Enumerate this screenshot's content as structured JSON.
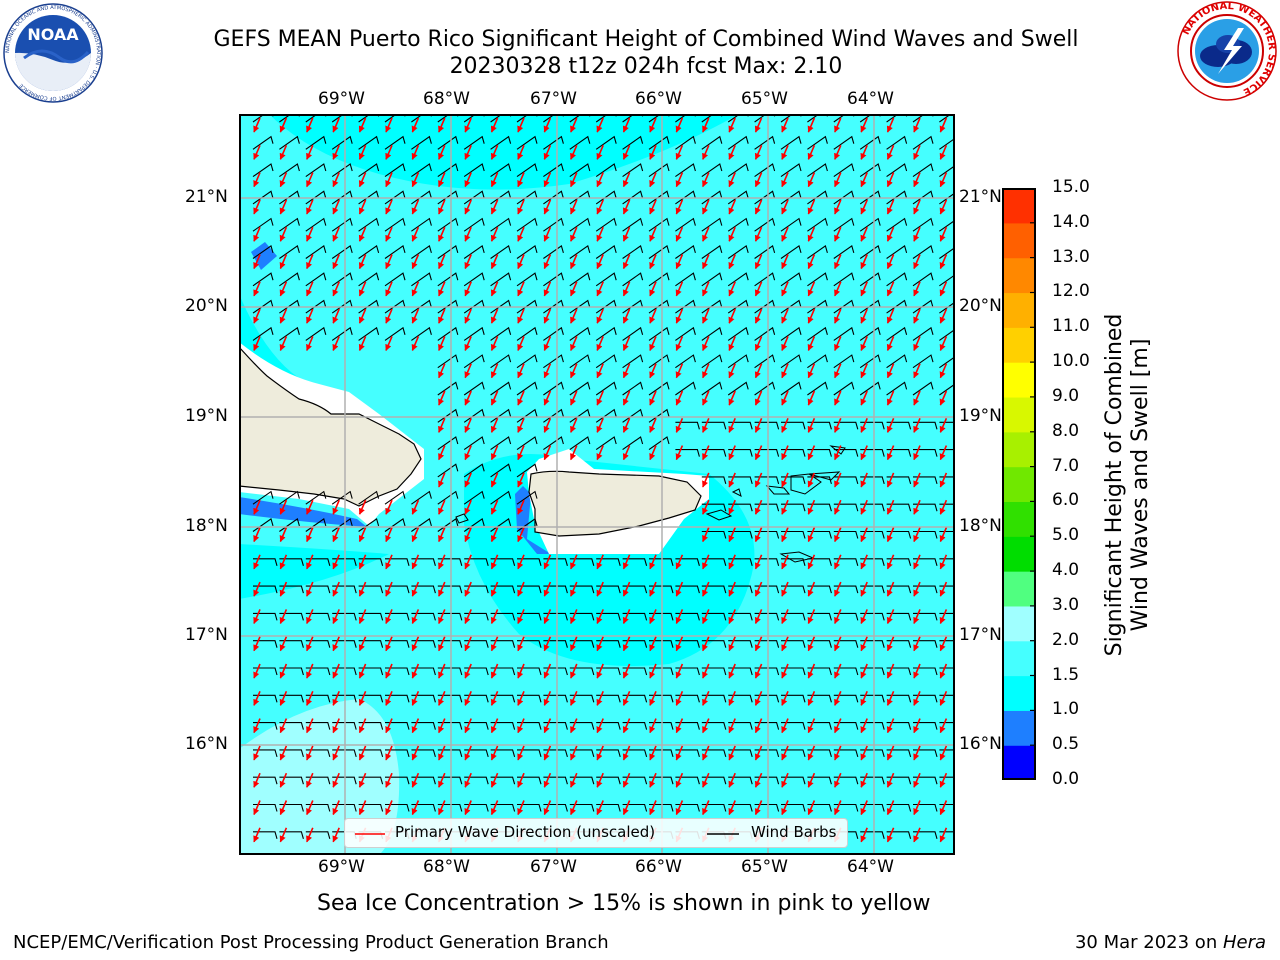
{
  "title": {
    "line1": "GEFS MEAN Puerto Rico Significant Height of Combined Wind Waves and Swell",
    "line2": "20230328 t12z 024h fcst   Max: 2.10"
  },
  "logos": {
    "noaa_text": "NOAA",
    "noaa_ring": "NATIONAL OCEANIC AND ATMOSPHERIC ADMINISTRATION · U.S. DEPARTMENT OF COMMERCE",
    "nws_ring": "NATIONAL WEATHER SERVICE"
  },
  "map": {
    "lon_labels": [
      "69°W",
      "68°W",
      "67°W",
      "66°W",
      "65°W",
      "64°W"
    ],
    "lat_labels": [
      "21°N",
      "20°N",
      "19°N",
      "18°N",
      "17°N",
      "16°N"
    ],
    "colors": {
      "ocean": "#45ffff",
      "calm_cyan": "#00ffff",
      "light_cyan": "#a0ffff",
      "blue_mid": "#1e7fff",
      "land": "#eeecdc",
      "wave_arrow": "#ff0000",
      "barb": "#000000"
    }
  },
  "colorbar": {
    "label_line1": "Significant Height of Combined",
    "label_line2": "Wind Waves and Swell [m]",
    "ticks": [
      "15.0",
      "14.0",
      "13.0",
      "12.0",
      "11.0",
      "10.0",
      "9.0",
      "8.0",
      "7.0",
      "6.0",
      "5.0",
      "4.0",
      "3.0",
      "2.0",
      "1.5",
      "1.0",
      "0.5",
      "0.0"
    ],
    "colors": [
      "#0000ff",
      "#1e7fff",
      "#00ffff",
      "#45ffff",
      "#a0ffff",
      "#50ff80",
      "#00dd00",
      "#30e000",
      "#70e800",
      "#a8f000",
      "#d8f800",
      "#ffff00",
      "#ffd000",
      "#ffb000",
      "#ff8800",
      "#ff6000",
      "#ff3000"
    ]
  },
  "legend": {
    "wave_label": "Primary Wave Direction (unscaled)",
    "barb_label": "Wind Barbs"
  },
  "note": "Sea Ice Concentration > 15% is shown in pink to yellow",
  "footer": {
    "left": "NCEP/EMC/Verification Post Processing Product Generation Branch",
    "right_prefix": "30 Mar 2023 on ",
    "right_host": "Hera"
  }
}
